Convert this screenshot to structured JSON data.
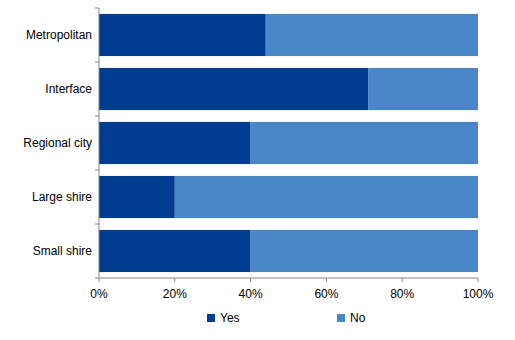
{
  "chart_data": {
    "type": "bar",
    "orientation": "horizontal",
    "stacked": true,
    "categories": [
      "Metropolitan",
      "Interface",
      "Regional city",
      "Large shire",
      "Small shire"
    ],
    "series": [
      {
        "name": "Yes",
        "color": "#003c8f",
        "values": [
          44,
          71,
          40,
          20,
          40
        ]
      },
      {
        "name": "No",
        "color": "#4a86c8",
        "values": [
          56,
          29,
          60,
          80,
          60
        ]
      }
    ],
    "xlim": [
      0,
      100
    ],
    "xticks": [
      {
        "value": 0,
        "label": "0%"
      },
      {
        "value": 20,
        "label": "20%"
      },
      {
        "value": 40,
        "label": "40%"
      },
      {
        "value": 60,
        "label": "60%"
      },
      {
        "value": 80,
        "label": "80%"
      },
      {
        "value": 100,
        "label": "100%"
      }
    ],
    "grid": false,
    "legend": "bottom"
  }
}
